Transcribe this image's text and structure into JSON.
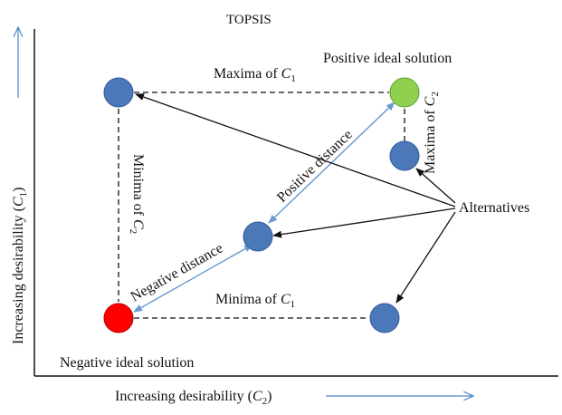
{
  "title": "TOPSIS",
  "axes": {
    "y_label": "Increasing desirability (",
    "y_var": "C",
    "y_sub": "1",
    "x_label": "Increasing desirability (",
    "x_var": "C",
    "x_sub": "2",
    "close_paren": ")"
  },
  "labels": {
    "maxima_c1": "Maxima of ",
    "minima_c1": "Minima of ",
    "maxima_c2": "Maxima of ",
    "minima_c2": "Minima of ",
    "c_var": "C",
    "sub1": "1",
    "sub2": "2",
    "positive_ideal": "Positive ideal solution",
    "negative_ideal": "Negative ideal solution",
    "alternatives": "Alternatives",
    "positive_distance": "Positive distance",
    "negative_distance": "Negative distance"
  },
  "colors": {
    "alternative": "#4a78b8",
    "positive_ideal": "#8fd14f",
    "negative_ideal": "#ff0000",
    "distance_line": "#6a9bd1",
    "axis_arrow": "#4a86c8"
  }
}
